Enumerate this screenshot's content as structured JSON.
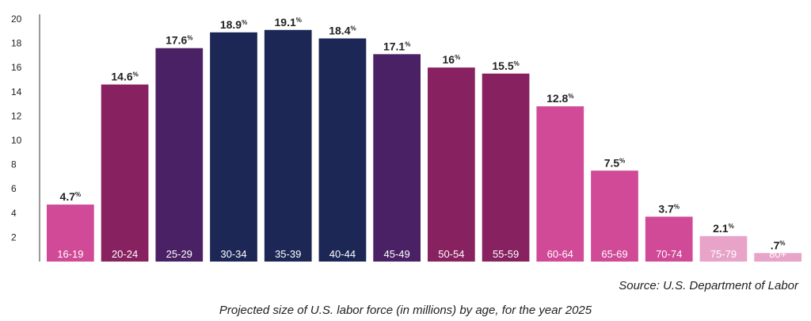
{
  "chart_data": {
    "type": "bar",
    "title": "",
    "xlabel": "",
    "ylabel": "",
    "ylim": [
      0,
      20
    ],
    "yticks": [
      2,
      4,
      6,
      8,
      10,
      12,
      14,
      16,
      18,
      20
    ],
    "grid": false,
    "categories": [
      "16-19",
      "20-24",
      "25-29",
      "30-34",
      "35-39",
      "40-44",
      "45-49",
      "50-54",
      "55-59",
      "60-64",
      "65-69",
      "70-74",
      "75-79",
      "80+"
    ],
    "values": [
      4.7,
      14.6,
      17.6,
      18.9,
      19.1,
      18.4,
      17.1,
      16,
      15.5,
      12.8,
      7.5,
      3.7,
      2.1,
      0.7
    ],
    "value_labels": [
      "4.7",
      "14.6",
      "17.6",
      "18.9",
      "19.1",
      "18.4",
      "17.1",
      "16",
      "15.5",
      "12.8",
      "7.5",
      "3.7",
      "2.1",
      ".7"
    ],
    "value_suffix": "%",
    "colors": [
      "#d04a97",
      "#88215f",
      "#4b2165",
      "#1d2756",
      "#1d2756",
      "#1d2756",
      "#4b2165",
      "#88215f",
      "#88215f",
      "#d04a97",
      "#d04a97",
      "#d04a97",
      "#e8a3c8",
      "#e8a3c8"
    ]
  },
  "source_note": "Source: U.S. Department of Labor",
  "caption": "Projected size of U.S. labor force (in millions) by age, for the year 2025"
}
